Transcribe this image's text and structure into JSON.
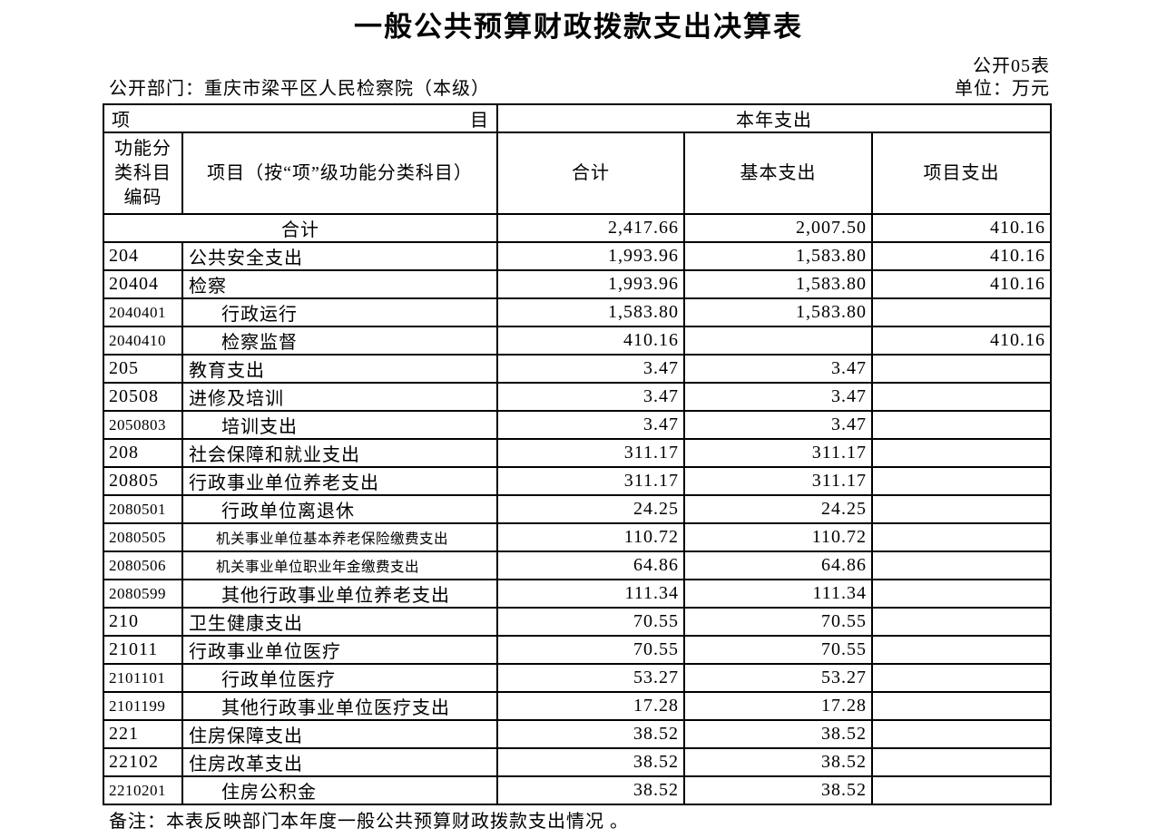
{
  "title": "一般公共预算财政拨款支出决算表",
  "meta": {
    "table_no": "公开05表",
    "department": "公开部门：重庆市梁平区人民检察院（本级）",
    "unit": "单位：万元"
  },
  "table": {
    "header": {
      "item_left": "项",
      "item_right": "目",
      "year_expense": "本年支出",
      "col_code": "功能分类科目编码",
      "col_item": "项目（按“项”级功能分类科目）",
      "col_total": "合计",
      "col_basic": "基本支出",
      "col_project": "项目支出"
    },
    "total_row": {
      "label": "合计",
      "total": "2,417.66",
      "basic": "2,007.50",
      "project": "410.16"
    },
    "rows": [
      {
        "code": "204",
        "name": "公共安全支出",
        "level": 1,
        "small": false,
        "total": "1,993.96",
        "basic": "1,583.80",
        "project": "410.16"
      },
      {
        "code": "20404",
        "name": "检察",
        "level": 2,
        "small": false,
        "total": "1,993.96",
        "basic": "1,583.80",
        "project": "410.16"
      },
      {
        "code": "2040401",
        "name": "行政运行",
        "level": 3,
        "small": false,
        "total": "1,583.80",
        "basic": "1,583.80",
        "project": ""
      },
      {
        "code": "2040410",
        "name": "检察监督",
        "level": 3,
        "small": false,
        "total": "410.16",
        "basic": "",
        "project": "410.16"
      },
      {
        "code": "205",
        "name": "教育支出",
        "level": 1,
        "small": false,
        "total": "3.47",
        "basic": "3.47",
        "project": ""
      },
      {
        "code": "20508",
        "name": "进修及培训",
        "level": 2,
        "small": false,
        "total": "3.47",
        "basic": "3.47",
        "project": ""
      },
      {
        "code": "2050803",
        "name": "培训支出",
        "level": 3,
        "small": false,
        "total": "3.47",
        "basic": "3.47",
        "project": ""
      },
      {
        "code": "208",
        "name": "社会保障和就业支出",
        "level": 1,
        "small": false,
        "total": "311.17",
        "basic": "311.17",
        "project": ""
      },
      {
        "code": "20805",
        "name": "行政事业单位养老支出",
        "level": 2,
        "small": false,
        "total": "311.17",
        "basic": "311.17",
        "project": ""
      },
      {
        "code": "2080501",
        "name": "行政单位离退休",
        "level": 3,
        "small": false,
        "total": "24.25",
        "basic": "24.25",
        "project": ""
      },
      {
        "code": "2080505",
        "name": "机关事业单位基本养老保险缴费支出",
        "level": 3,
        "small": true,
        "total": "110.72",
        "basic": "110.72",
        "project": ""
      },
      {
        "code": "2080506",
        "name": "机关事业单位职业年金缴费支出",
        "level": 3,
        "small": true,
        "total": "64.86",
        "basic": "64.86",
        "project": ""
      },
      {
        "code": "2080599",
        "name": "其他行政事业单位养老支出",
        "level": 3,
        "small": false,
        "total": "111.34",
        "basic": "111.34",
        "project": ""
      },
      {
        "code": "210",
        "name": "卫生健康支出",
        "level": 1,
        "small": false,
        "total": "70.55",
        "basic": "70.55",
        "project": ""
      },
      {
        "code": "21011",
        "name": "行政事业单位医疗",
        "level": 2,
        "small": false,
        "total": "70.55",
        "basic": "70.55",
        "project": ""
      },
      {
        "code": "2101101",
        "name": "行政单位医疗",
        "level": 3,
        "small": false,
        "total": "53.27",
        "basic": "53.27",
        "project": ""
      },
      {
        "code": "2101199",
        "name": "其他行政事业单位医疗支出",
        "level": 3,
        "small": false,
        "total": "17.28",
        "basic": "17.28",
        "project": ""
      },
      {
        "code": "221",
        "name": "住房保障支出",
        "level": 1,
        "small": false,
        "total": "38.52",
        "basic": "38.52",
        "project": ""
      },
      {
        "code": "22102",
        "name": "住房改革支出",
        "level": 2,
        "small": false,
        "total": "38.52",
        "basic": "38.52",
        "project": ""
      },
      {
        "code": "2210201",
        "name": "住房公积金",
        "level": 3,
        "small": false,
        "total": "38.52",
        "basic": "38.52",
        "project": ""
      }
    ]
  },
  "footnote": "备注：本表反映部门本年度一般公共预算财政拨款支出情况 。"
}
